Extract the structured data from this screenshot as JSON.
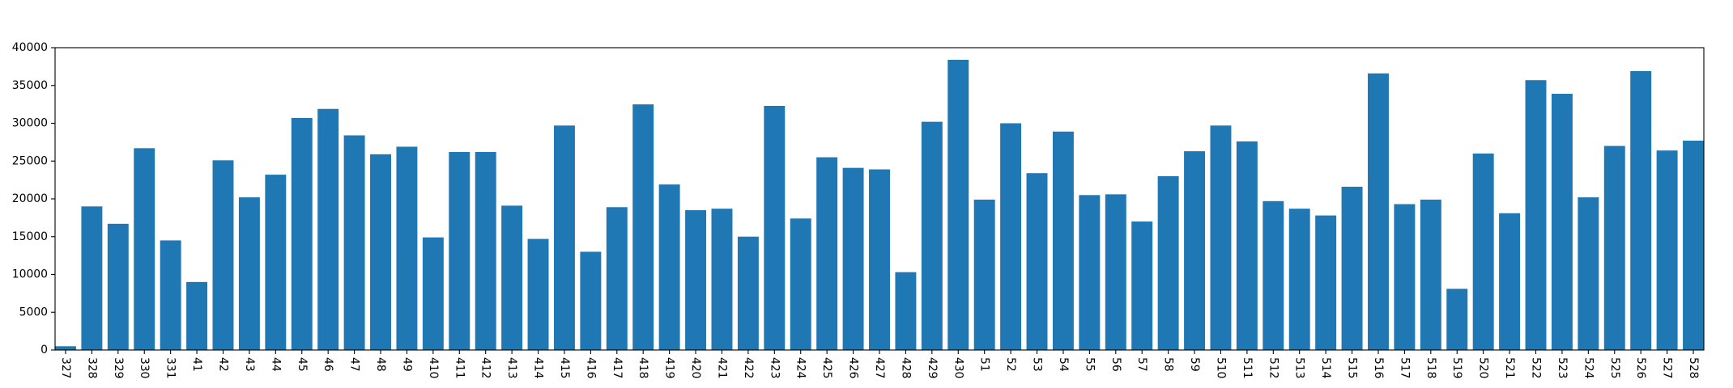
{
  "chart_data": {
    "type": "bar",
    "categories": [
      "327",
      "328",
      "329",
      "330",
      "331",
      "41",
      "42",
      "43",
      "44",
      "45",
      "46",
      "47",
      "48",
      "49",
      "410",
      "411",
      "412",
      "413",
      "414",
      "415",
      "416",
      "417",
      "418",
      "419",
      "420",
      "421",
      "422",
      "423",
      "424",
      "425",
      "426",
      "427",
      "428",
      "429",
      "430",
      "51",
      "52",
      "53",
      "54",
      "55",
      "56",
      "57",
      "58",
      "59",
      "510",
      "511",
      "512",
      "513",
      "514",
      "515",
      "516",
      "517",
      "518",
      "519",
      "520",
      "521",
      "522",
      "523",
      "524",
      "525",
      "526",
      "527",
      "528"
    ],
    "values": [
      500,
      19000,
      16700,
      26700,
      14500,
      9000,
      25100,
      20200,
      23200,
      30700,
      31900,
      28400,
      25900,
      26900,
      14900,
      26200,
      26200,
      19100,
      14700,
      29700,
      13000,
      18900,
      32500,
      21900,
      18500,
      18700,
      15000,
      32300,
      17400,
      25500,
      24100,
      23900,
      10300,
      30200,
      38400,
      19900,
      30000,
      23400,
      28900,
      20500,
      20600,
      17000,
      23000,
      26300,
      29700,
      27600,
      19700,
      18700,
      17800,
      21600,
      36600,
      19300,
      19900,
      8100,
      26000,
      18100,
      35700,
      33900,
      20200,
      27000,
      36900,
      26400,
      27700
    ],
    "color": "#1f77b4",
    "ylim": [
      0,
      40000
    ],
    "yticks": [
      0,
      5000,
      10000,
      15000,
      20000,
      25000,
      30000,
      35000,
      40000
    ],
    "grid": false,
    "title": "",
    "xlabel": "",
    "ylabel": ""
  }
}
